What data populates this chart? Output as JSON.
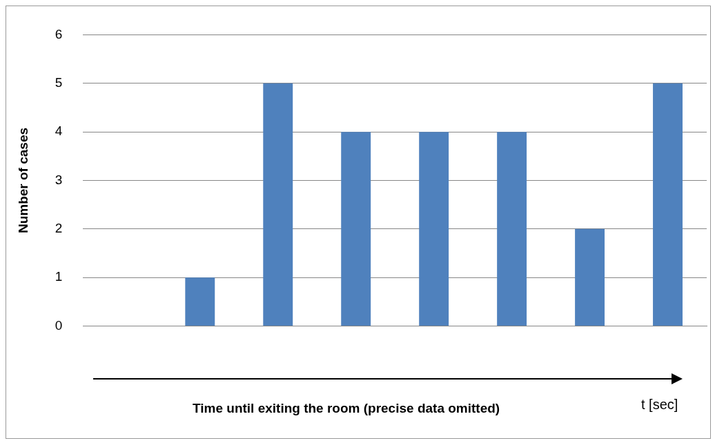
{
  "chart_data": {
    "type": "bar",
    "ylabel": "Number of cases",
    "categories": [
      null,
      null,
      null,
      null,
      null,
      null,
      null,
      null
    ],
    "values": [
      0,
      1,
      5,
      4,
      4,
      4,
      2,
      5
    ],
    "color": "#4f81bd",
    "ylim": [
      0,
      6
    ],
    "yticks": [
      0,
      1,
      2,
      3,
      4,
      5,
      6
    ],
    "grid": "y",
    "tick_labels": "y",
    "annotations": [
      "Time until exiting the room (precise data omitted)",
      "t [sec]"
    ]
  }
}
